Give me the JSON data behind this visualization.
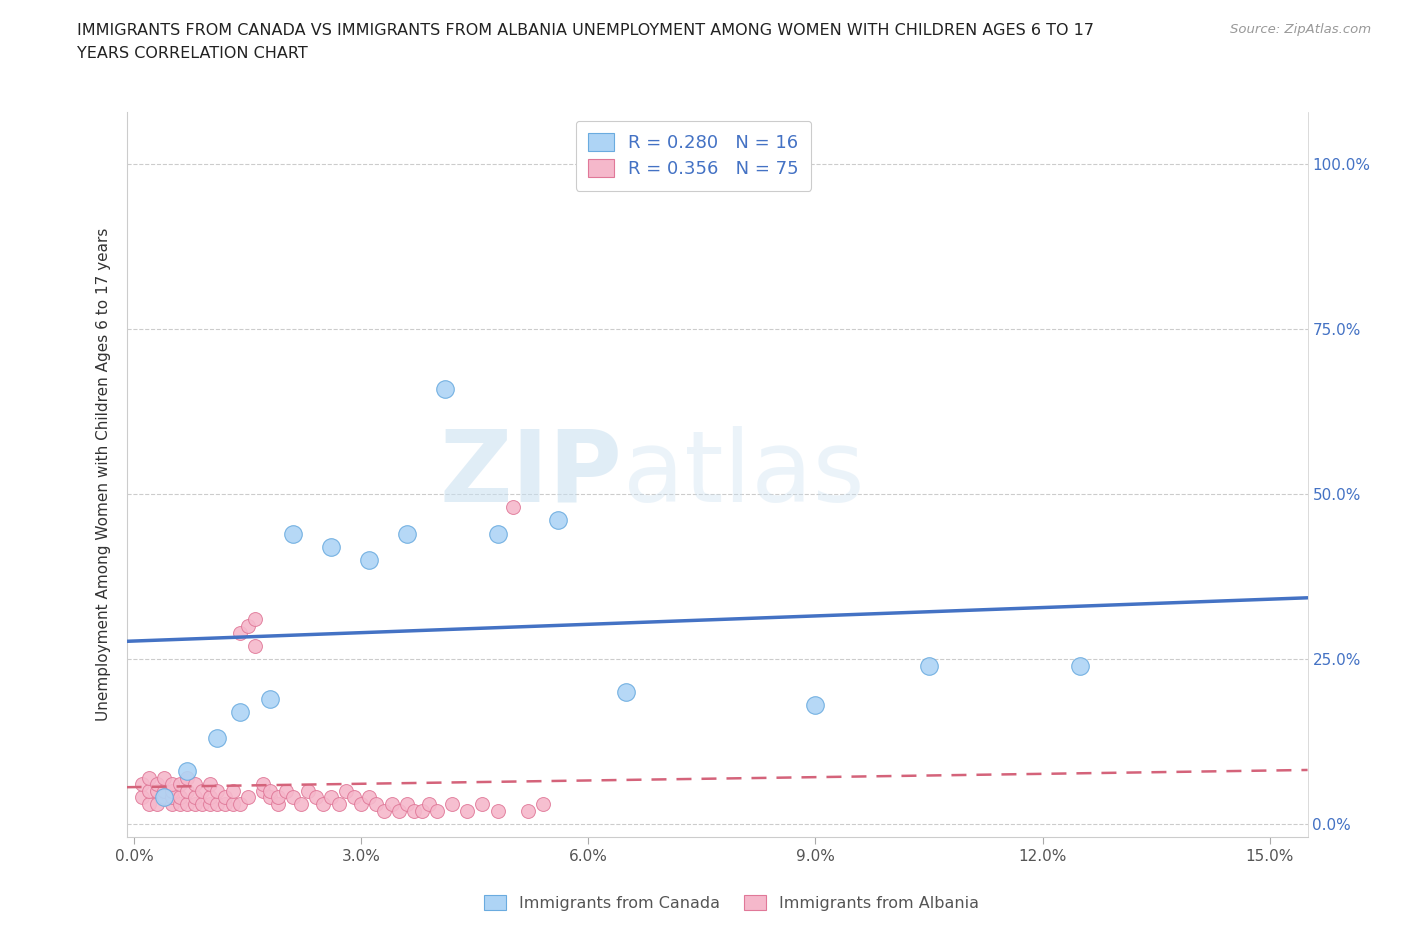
{
  "title_line1": "IMMIGRANTS FROM CANADA VS IMMIGRANTS FROM ALBANIA UNEMPLOYMENT AMONG WOMEN WITH CHILDREN AGES 6 TO 17",
  "title_line2": "YEARS CORRELATION CHART",
  "source": "Source: ZipAtlas.com",
  "xlabel_ticks": [
    "0.0%",
    "3.0%",
    "6.0%",
    "9.0%",
    "12.0%",
    "15.0%"
  ],
  "xlabel_vals": [
    0.0,
    0.03,
    0.06,
    0.09,
    0.12,
    0.15
  ],
  "ylabel_ticks": [
    "0.0%",
    "25.0%",
    "50.0%",
    "75.0%",
    "100.0%"
  ],
  "ylabel_vals": [
    0.0,
    0.25,
    0.5,
    0.75,
    1.0
  ],
  "xlim": [
    -0.001,
    0.155
  ],
  "ylim": [
    -0.02,
    1.08
  ],
  "ylabel": "Unemployment Among Women with Children Ages 6 to 17 years",
  "canada_color": "#aed4f5",
  "canada_edge_color": "#6aabdf",
  "albania_color": "#f5b8cb",
  "albania_edge_color": "#e07898",
  "line_canada_color": "#4472c4",
  "line_albania_color": "#d4637a",
  "canada_R": "R = 0.280",
  "canada_N": "N = 16",
  "albania_R": "R = 0.356",
  "albania_N": "N = 75",
  "legend_label_canada": "Immigrants from Canada",
  "legend_label_albania": "Immigrants from Albania",
  "watermark_zip": "ZIP",
  "watermark_atlas": "atlas",
  "canada_x": [
    0.004,
    0.007,
    0.011,
    0.014,
    0.018,
    0.021,
    0.026,
    0.031,
    0.036,
    0.041,
    0.048,
    0.056,
    0.065,
    0.09,
    0.105,
    0.125
  ],
  "canada_y": [
    0.04,
    0.08,
    0.13,
    0.17,
    0.19,
    0.44,
    0.42,
    0.4,
    0.44,
    0.66,
    0.44,
    0.46,
    0.2,
    0.18,
    0.24,
    0.24
  ],
  "albania_x": [
    0.001,
    0.001,
    0.002,
    0.002,
    0.002,
    0.003,
    0.003,
    0.003,
    0.004,
    0.004,
    0.004,
    0.005,
    0.005,
    0.005,
    0.005,
    0.006,
    0.006,
    0.006,
    0.007,
    0.007,
    0.007,
    0.008,
    0.008,
    0.008,
    0.009,
    0.009,
    0.01,
    0.01,
    0.01,
    0.011,
    0.011,
    0.012,
    0.012,
    0.013,
    0.013,
    0.014,
    0.014,
    0.015,
    0.015,
    0.016,
    0.016,
    0.017,
    0.017,
    0.018,
    0.018,
    0.019,
    0.019,
    0.02,
    0.021,
    0.022,
    0.023,
    0.024,
    0.025,
    0.026,
    0.027,
    0.028,
    0.029,
    0.03,
    0.031,
    0.032,
    0.033,
    0.034,
    0.035,
    0.036,
    0.037,
    0.038,
    0.039,
    0.04,
    0.042,
    0.044,
    0.046,
    0.048,
    0.05,
    0.052,
    0.054
  ],
  "albania_y": [
    0.04,
    0.06,
    0.03,
    0.05,
    0.07,
    0.03,
    0.05,
    0.06,
    0.04,
    0.05,
    0.07,
    0.03,
    0.04,
    0.05,
    0.06,
    0.03,
    0.04,
    0.06,
    0.03,
    0.05,
    0.07,
    0.03,
    0.04,
    0.06,
    0.03,
    0.05,
    0.03,
    0.04,
    0.06,
    0.03,
    0.05,
    0.03,
    0.04,
    0.03,
    0.05,
    0.03,
    0.29,
    0.3,
    0.04,
    0.27,
    0.31,
    0.05,
    0.06,
    0.04,
    0.05,
    0.03,
    0.04,
    0.05,
    0.04,
    0.03,
    0.05,
    0.04,
    0.03,
    0.04,
    0.03,
    0.05,
    0.04,
    0.03,
    0.04,
    0.03,
    0.02,
    0.03,
    0.02,
    0.03,
    0.02,
    0.02,
    0.03,
    0.02,
    0.03,
    0.02,
    0.03,
    0.02,
    0.48,
    0.02,
    0.03
  ]
}
